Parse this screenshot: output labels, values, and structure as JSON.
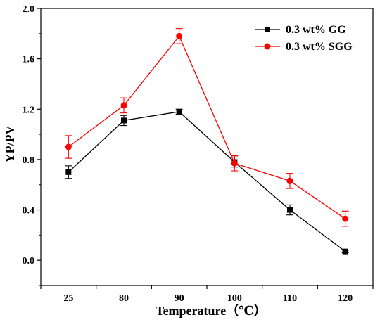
{
  "chart_data": {
    "type": "line",
    "categories": [
      "25",
      "80",
      "90",
      "100",
      "110",
      "120"
    ],
    "xlabel": "Temperature（℃）",
    "ylabel": "YP/PV",
    "ylim": [
      -0.2,
      2.0
    ],
    "yticks": [
      "0.0",
      "0.4",
      "0.8",
      "1.2",
      "1.6",
      "2.0"
    ],
    "ytick_values": [
      0.0,
      0.4,
      0.8,
      1.2,
      1.6,
      2.0
    ],
    "legend_position": "top-right",
    "grid": false,
    "series": [
      {
        "name": "0.3 wt% GG",
        "color": "#000000",
        "marker": "square",
        "values": [
          0.7,
          1.11,
          1.18,
          0.78,
          0.4,
          0.07
        ],
        "errors": [
          0.05,
          0.04,
          0.02,
          0.04,
          0.04,
          0.01
        ]
      },
      {
        "name": "0.3 wt% SGG",
        "color": "#ff0000",
        "marker": "circle",
        "values": [
          0.9,
          1.23,
          1.78,
          0.77,
          0.63,
          0.33
        ],
        "errors": [
          0.09,
          0.06,
          0.06,
          0.06,
          0.06,
          0.06
        ]
      }
    ]
  }
}
